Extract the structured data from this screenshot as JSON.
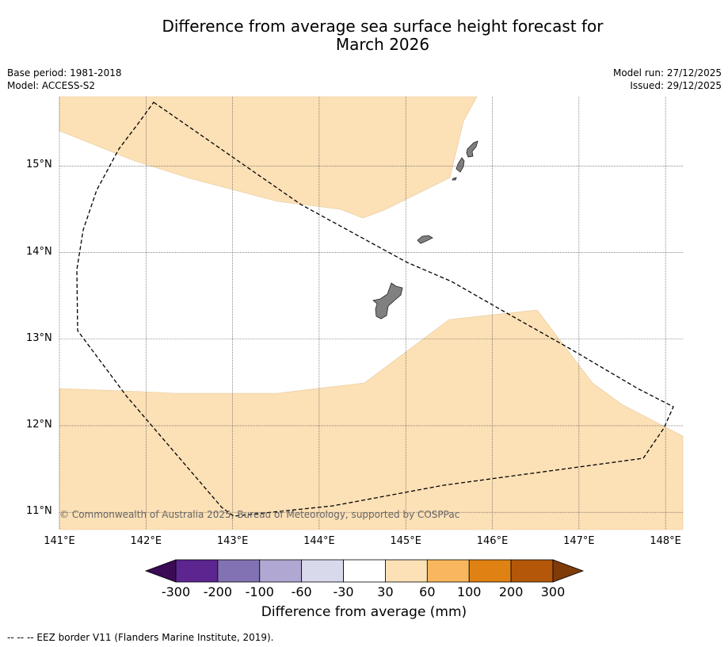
{
  "title": {
    "line1": "Difference from average sea surface height forecast for",
    "line2": "March 2026"
  },
  "meta_left": {
    "base_period": "Base period: 1981-2018",
    "model": "Model: ACCESS-S2"
  },
  "meta_right": {
    "model_run": "Model run: 27/12/2025",
    "issued": "Issued: 29/12/2025"
  },
  "map": {
    "lon_range": [
      141.0,
      148.2
    ],
    "lat_range": [
      10.8,
      15.8
    ],
    "lat_ticks": [
      {
        "value": 15,
        "label": "15°N"
      },
      {
        "value": 14,
        "label": "14°N"
      },
      {
        "value": 13,
        "label": "13°N"
      },
      {
        "value": 12,
        "label": "12°N"
      },
      {
        "value": 11,
        "label": "11°N"
      }
    ],
    "lon_ticks": [
      {
        "value": 141,
        "label": "141°E"
      },
      {
        "value": 142,
        "label": "142°E"
      },
      {
        "value": 143,
        "label": "143°E"
      },
      {
        "value": 144,
        "label": "144°E"
      },
      {
        "value": 145,
        "label": "145°E"
      },
      {
        "value": 146,
        "label": "146°E"
      },
      {
        "value": 147,
        "label": "147°E"
      },
      {
        "value": 148,
        "label": "148°E"
      }
    ],
    "anomaly_fill_color": "#fce0b6",
    "land_color": "#808080",
    "copyright": "© Commonwealth of Australia 2025, Bureau of Meteorology, supported by COSPPac"
  },
  "colorbar": {
    "ticks": [
      "-300",
      "-200",
      "-100",
      "-60",
      "-30",
      "30",
      "60",
      "100",
      "200",
      "300"
    ],
    "colors": [
      "#3b0b55",
      "#5c2590",
      "#8372b3",
      "#b0a8d2",
      "#d9d9ec",
      "#ffffff",
      "#fce0b6",
      "#f8b75e",
      "#e08213",
      "#b45708",
      "#7f3b08"
    ],
    "label": "Difference from average (mm)"
  },
  "footer": "--  --  -- EEZ border V11 (Flanders Marine Institute, 2019)."
}
